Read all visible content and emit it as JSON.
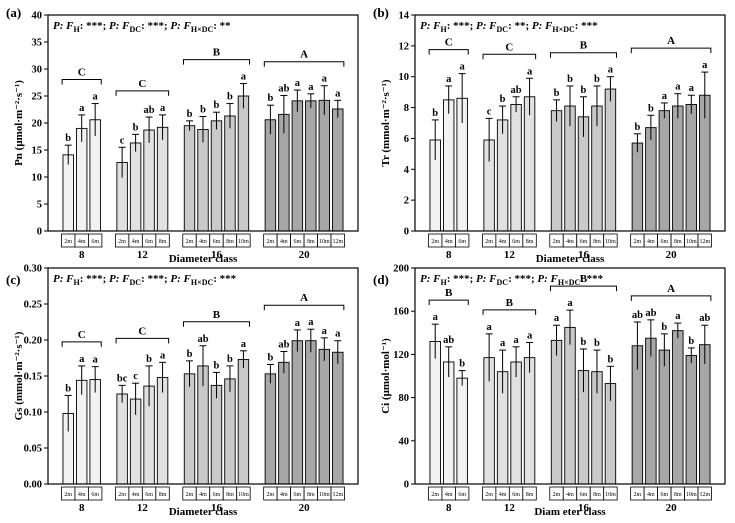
{
  "chart_data": [
    {
      "type": "bar",
      "panel_label": "(a)",
      "stats": [
        {
          "prefix": "P: F",
          "sub": "H",
          "stars": ": ***; "
        },
        {
          "prefix": "P: F",
          "sub": "DC",
          "stars": ": ***; "
        },
        {
          "prefix": "P: F",
          "sub": "H×DC",
          "stars": ": **"
        }
      ],
      "ylabel": "Pn (μmol·m⁻²·s⁻¹)",
      "xlabel": "Diameter class",
      "ylim": [
        0,
        40
      ],
      "yticks": [
        0,
        5,
        10,
        15,
        20,
        25,
        30,
        35,
        40
      ],
      "groups": [
        {
          "name": "8",
          "group_letter": "C",
          "shade": "#f2f2f2",
          "bars": [
            {
              "h": "2m",
              "v": 14.1,
              "err": 1.8,
              "l": "b"
            },
            {
              "h": "4m",
              "v": 19.0,
              "err": 2.5,
              "l": "a"
            },
            {
              "h": "6m",
              "v": 20.6,
              "err": 3.0,
              "l": "a"
            }
          ]
        },
        {
          "name": "12",
          "group_letter": "C",
          "shade": "#e1e1e1",
          "bars": [
            {
              "h": "2m",
              "v": 12.7,
              "err": 2.8,
              "l": "c"
            },
            {
              "h": "4m",
              "v": 16.3,
              "err": 1.6,
              "l": "b"
            },
            {
              "h": "6m",
              "v": 18.7,
              "err": 2.4,
              "l": "ab"
            },
            {
              "h": "8m",
              "v": 19.2,
              "err": 2.3,
              "l": "a"
            }
          ]
        },
        {
          "name": "16",
          "group_letter": "B",
          "shade": "#c9c9c9",
          "bars": [
            {
              "h": "2m",
              "v": 19.5,
              "err": 0.9,
              "l": "b"
            },
            {
              "h": "4m",
              "v": 18.8,
              "err": 2.4,
              "l": "b"
            },
            {
              "h": "6m",
              "v": 20.4,
              "err": 1.6,
              "l": "b"
            },
            {
              "h": "8m",
              "v": 21.3,
              "err": 2.3,
              "l": "b"
            },
            {
              "h": "10m",
              "v": 25.0,
              "err": 2.3,
              "l": "a"
            }
          ]
        },
        {
          "name": "20",
          "group_letter": "A",
          "shade": "#a7a7a7",
          "bars": [
            {
              "h": "2m",
              "v": 20.6,
              "err": 2.7,
              "l": "b"
            },
            {
              "h": "4m",
              "v": 21.6,
              "err": 3.5,
              "l": "ab"
            },
            {
              "h": "6m",
              "v": 24.1,
              "err": 2.0,
              "l": "a"
            },
            {
              "h": "8m",
              "v": 24.1,
              "err": 1.3,
              "l": "a"
            },
            {
              "h": "10m",
              "v": 24.2,
              "err": 2.7,
              "l": "a"
            },
            {
              "h": "12m",
              "v": 22.6,
              "err": 1.6,
              "l": "a"
            }
          ]
        }
      ]
    },
    {
      "type": "bar",
      "panel_label": "(b)",
      "stats": [
        {
          "prefix": "P: F",
          "sub": "H",
          "stars": ": ***; "
        },
        {
          "prefix": "P: F",
          "sub": "DC",
          "stars": ": **; "
        },
        {
          "prefix": "P: F",
          "sub": "H×DC",
          "stars": ": ***"
        }
      ],
      "ylabel": "Tr (mmol·m⁻²·s⁻¹)",
      "xlabel": "Diameter class",
      "ylim": [
        0,
        14
      ],
      "yticks": [
        0,
        2,
        4,
        6,
        8,
        10,
        12,
        14
      ],
      "groups": [
        {
          "name": "8",
          "group_letter": "C",
          "shade": "#f2f2f2",
          "bars": [
            {
              "h": "2m",
              "v": 5.9,
              "err": 1.3,
              "l": "b"
            },
            {
              "h": "4m",
              "v": 8.5,
              "err": 0.9,
              "l": "a"
            },
            {
              "h": "6m",
              "v": 8.6,
              "err": 1.6,
              "l": "a"
            }
          ]
        },
        {
          "name": "12",
          "group_letter": "C",
          "shade": "#e1e1e1",
          "bars": [
            {
              "h": "2m",
              "v": 5.9,
              "err": 1.4,
              "l": "c"
            },
            {
              "h": "4m",
              "v": 7.2,
              "err": 0.9,
              "l": "b"
            },
            {
              "h": "6m",
              "v": 8.2,
              "err": 0.5,
              "l": "ab"
            },
            {
              "h": "8m",
              "v": 8.7,
              "err": 1.2,
              "l": "a"
            }
          ]
        },
        {
          "name": "16",
          "group_letter": "B",
          "shade": "#c9c9c9",
          "bars": [
            {
              "h": "2m",
              "v": 7.8,
              "err": 0.7,
              "l": "b"
            },
            {
              "h": "4m",
              "v": 8.1,
              "err": 1.3,
              "l": "b"
            },
            {
              "h": "6m",
              "v": 7.4,
              "err": 1.3,
              "l": "b"
            },
            {
              "h": "8m",
              "v": 8.1,
              "err": 1.3,
              "l": "b"
            },
            {
              "h": "10m",
              "v": 9.2,
              "err": 0.8,
              "l": "a"
            }
          ]
        },
        {
          "name": "20",
          "group_letter": "A",
          "shade": "#a7a7a7",
          "bars": [
            {
              "h": "2m",
              "v": 5.7,
              "err": 0.6,
              "l": "b"
            },
            {
              "h": "4m",
              "v": 6.7,
              "err": 0.8,
              "l": "b"
            },
            {
              "h": "6m",
              "v": 7.8,
              "err": 0.5,
              "l": "a"
            },
            {
              "h": "8m",
              "v": 8.1,
              "err": 0.8,
              "l": "a"
            },
            {
              "h": "10m",
              "v": 8.2,
              "err": 0.6,
              "l": "a"
            },
            {
              "h": "12m",
              "v": 8.8,
              "err": 1.5,
              "l": "a"
            }
          ]
        }
      ]
    },
    {
      "type": "bar",
      "panel_label": "(c)",
      "stats": [
        {
          "prefix": "P: F",
          "sub": "H",
          "stars": ": ***; "
        },
        {
          "prefix": "P: F",
          "sub": "DC",
          "stars": ": ***; "
        },
        {
          "prefix": "P: F",
          "sub": "H×DC",
          "stars": ": ***"
        }
      ],
      "ylabel": "Gs (mmol·m⁻²·s⁻¹)",
      "xlabel": "Diameter class",
      "ylim": [
        0,
        0.3
      ],
      "yticks": [
        0,
        0.05,
        0.1,
        0.15,
        0.2,
        0.25,
        0.3
      ],
      "ytick_labels": [
        "0.00",
        "0.05",
        "0.10",
        "0.15",
        "0.20",
        "0.25",
        "0.30"
      ],
      "groups": [
        {
          "name": "8",
          "group_letter": "C",
          "shade": "#f2f2f2",
          "bars": [
            {
              "h": "2m",
              "v": 0.098,
              "err": 0.025,
              "l": "b"
            },
            {
              "h": "4m",
              "v": 0.144,
              "err": 0.02,
              "l": "a"
            },
            {
              "h": "6m",
              "v": 0.145,
              "err": 0.018,
              "l": "a"
            }
          ]
        },
        {
          "name": "12",
          "group_letter": "C",
          "shade": "#e1e1e1",
          "bars": [
            {
              "h": "2m",
              "v": 0.125,
              "err": 0.012,
              "l": "bc"
            },
            {
              "h": "4m",
              "v": 0.118,
              "err": 0.022,
              "l": "c"
            },
            {
              "h": "6m",
              "v": 0.136,
              "err": 0.028,
              "l": "b"
            },
            {
              "h": "8m",
              "v": 0.148,
              "err": 0.021,
              "l": "a"
            }
          ]
        },
        {
          "name": "16",
          "group_letter": "B",
          "shade": "#c9c9c9",
          "bars": [
            {
              "h": "2m",
              "v": 0.153,
              "err": 0.018,
              "l": "b"
            },
            {
              "h": "4m",
              "v": 0.164,
              "err": 0.028,
              "l": "ab"
            },
            {
              "h": "6m",
              "v": 0.137,
              "err": 0.018,
              "l": "b"
            },
            {
              "h": "8m",
              "v": 0.146,
              "err": 0.018,
              "l": "b"
            },
            {
              "h": "10m",
              "v": 0.173,
              "err": 0.012,
              "l": "a"
            }
          ]
        },
        {
          "name": "20",
          "group_letter": "A",
          "shade": "#a7a7a7",
          "bars": [
            {
              "h": "2m",
              "v": 0.153,
              "err": 0.013,
              "l": "b"
            },
            {
              "h": "4m",
              "v": 0.169,
              "err": 0.015,
              "l": "ab"
            },
            {
              "h": "6m",
              "v": 0.199,
              "err": 0.015,
              "l": "a"
            },
            {
              "h": "8m",
              "v": 0.199,
              "err": 0.016,
              "l": "a"
            },
            {
              "h": "10m",
              "v": 0.187,
              "err": 0.016,
              "l": "a"
            },
            {
              "h": "12m",
              "v": 0.183,
              "err": 0.016,
              "l": "a"
            }
          ]
        }
      ]
    },
    {
      "type": "bar",
      "panel_label": "(d)",
      "stats": [
        {
          "prefix": "P: F",
          "sub": "H",
          "stars": ": ***; "
        },
        {
          "prefix": "P: F",
          "sub": "DC",
          "stars": ": ***; "
        },
        {
          "prefix": "P: F",
          "sub": "H×DC",
          "stars": ": ***"
        }
      ],
      "ylabel": "Ci (μmol·mol⁻¹)",
      "xlabel": "Diam eter class",
      "ylim": [
        0,
        200
      ],
      "yticks": [
        0,
        40,
        80,
        120,
        160,
        200
      ],
      "groups": [
        {
          "name": "8",
          "group_letter": "B",
          "shade": "#f2f2f2",
          "bars": [
            {
              "h": "2m",
              "v": 132,
              "err": 16,
              "l": "a"
            },
            {
              "h": "4m",
              "v": 113,
              "err": 14,
              "l": "ab"
            },
            {
              "h": "6m",
              "v": 98,
              "err": 7,
              "l": "b"
            }
          ]
        },
        {
          "name": "12",
          "group_letter": "B",
          "shade": "#e1e1e1",
          "bars": [
            {
              "h": "2m",
              "v": 117,
              "err": 22,
              "l": "a"
            },
            {
              "h": "4m",
              "v": 104,
              "err": 20,
              "l": "a"
            },
            {
              "h": "6m",
              "v": 113,
              "err": 14,
              "l": "a"
            },
            {
              "h": "8m",
              "v": 117,
              "err": 14,
              "l": "a"
            }
          ]
        },
        {
          "name": "16",
          "group_letter": "B",
          "shade": "#c9c9c9",
          "bars": [
            {
              "h": "2m",
              "v": 133,
              "err": 14,
              "l": "a"
            },
            {
              "h": "4m",
              "v": 145,
              "err": 16,
              "l": "a"
            },
            {
              "h": "6m",
              "v": 105,
              "err": 20,
              "l": "b"
            },
            {
              "h": "8m",
              "v": 104,
              "err": 20,
              "l": "b"
            },
            {
              "h": "10m",
              "v": 93,
              "err": 16,
              "l": "b"
            }
          ]
        },
        {
          "name": "20",
          "group_letter": "A",
          "shade": "#a7a7a7",
          "bars": [
            {
              "h": "2m",
              "v": 128,
              "err": 22,
              "l": "ab"
            },
            {
              "h": "4m",
              "v": 135,
              "err": 17,
              "l": "ab"
            },
            {
              "h": "6m",
              "v": 124,
              "err": 15,
              "l": "b"
            },
            {
              "h": "8m",
              "v": 142,
              "err": 7,
              "l": "a"
            },
            {
              "h": "10m",
              "v": 119,
              "err": 7,
              "l": "b"
            },
            {
              "h": "12m",
              "v": 129,
              "err": 18,
              "l": "ab"
            }
          ]
        }
      ]
    }
  ]
}
